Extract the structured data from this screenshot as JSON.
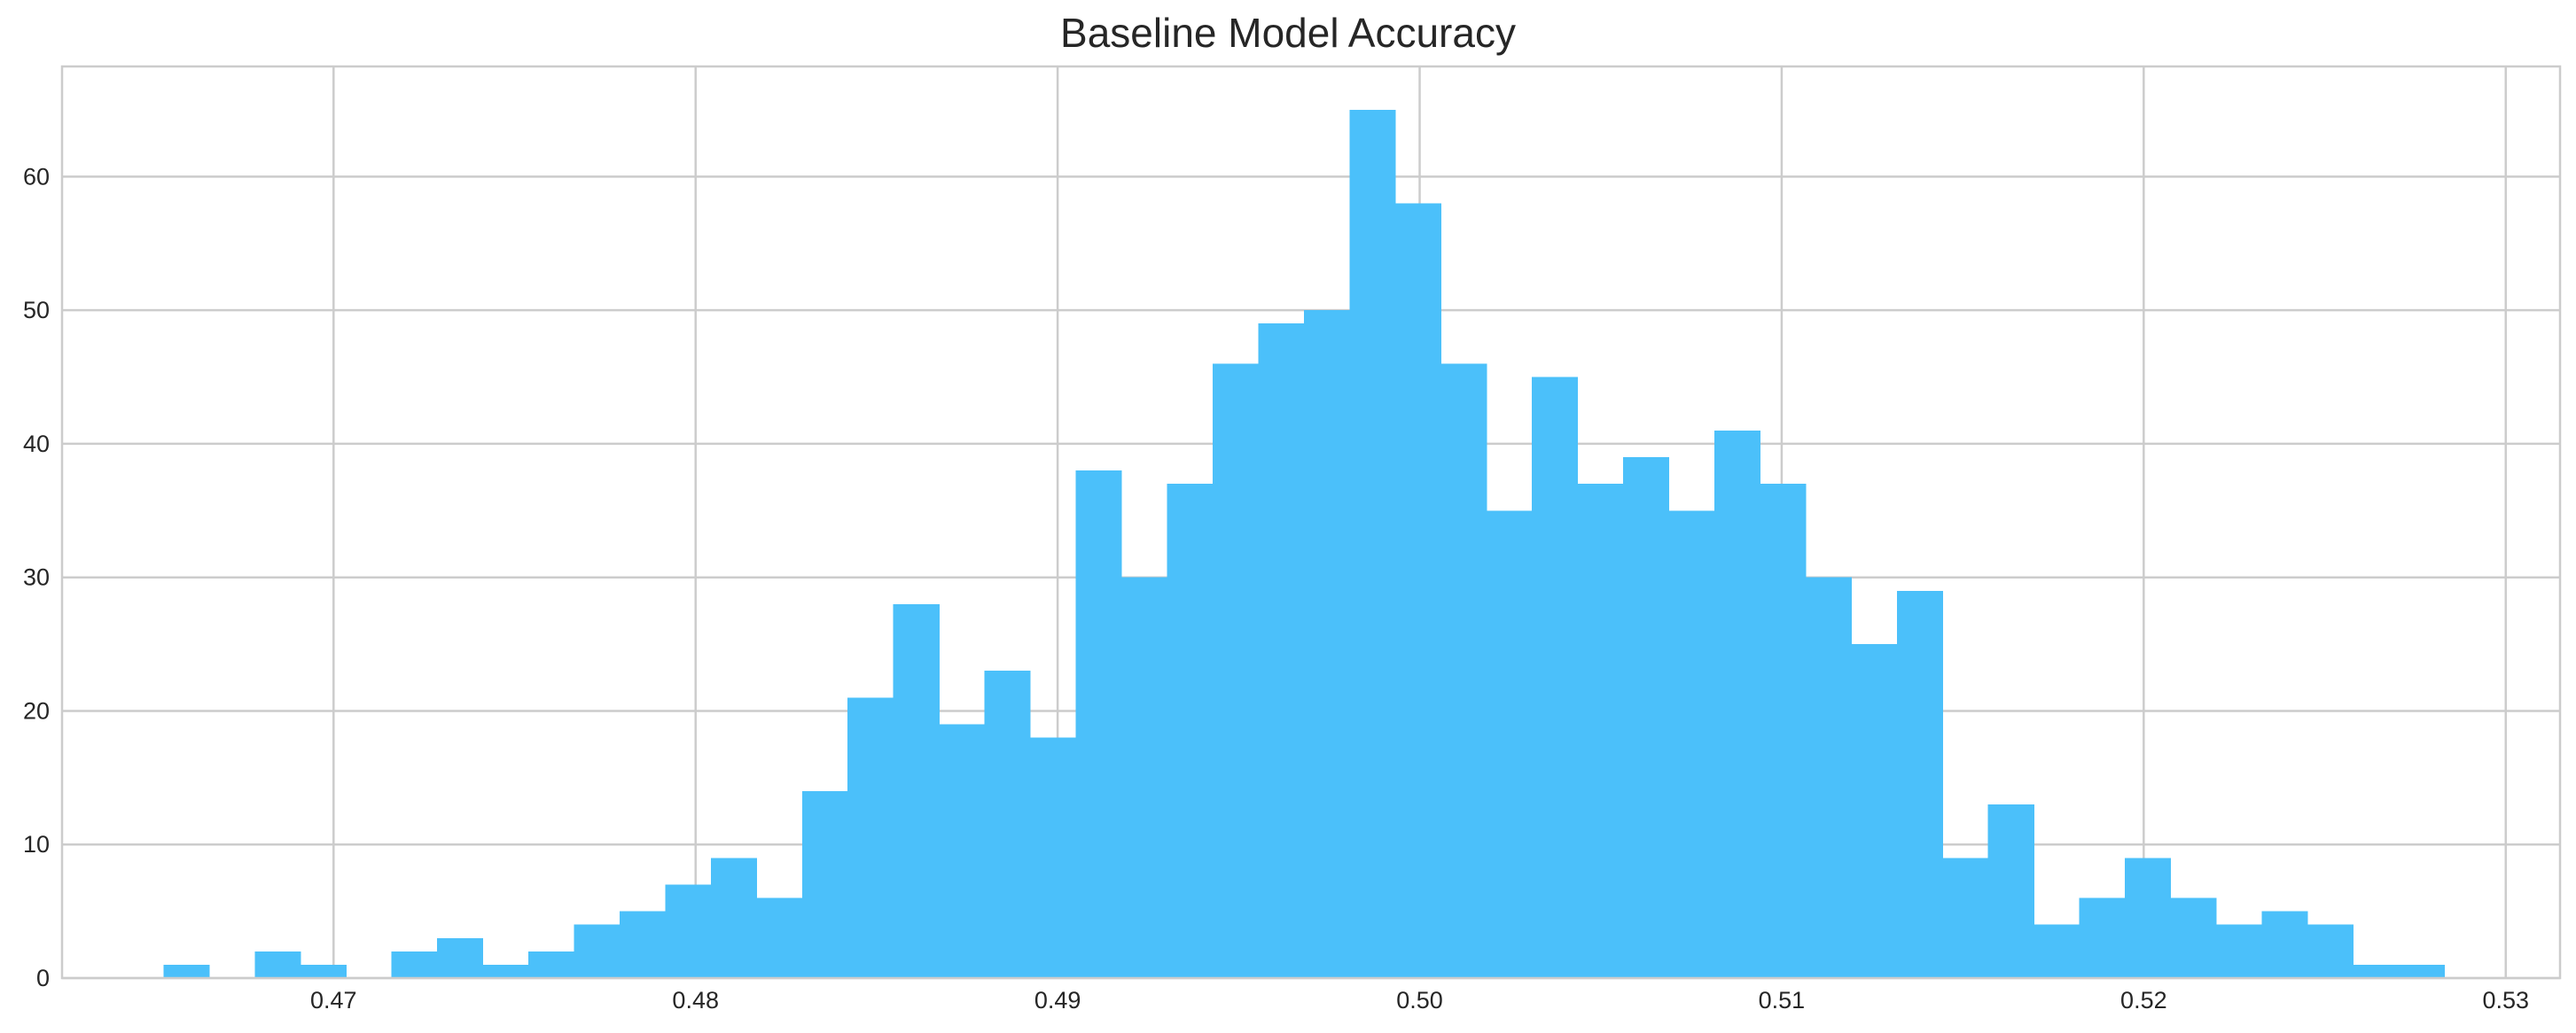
{
  "chart_data": {
    "type": "bar",
    "subtype": "histogram",
    "title": "Baseline Model Accuracy",
    "xlabel": "",
    "ylabel": "",
    "xlim": [
      0.4625,
      0.5315
    ],
    "ylim": [
      0,
      68.25
    ],
    "xticks": [
      0.47,
      0.48,
      0.49,
      0.5,
      0.51,
      0.52,
      0.53
    ],
    "xtick_labels": [
      "0.47",
      "0.48",
      "0.49",
      "0.50",
      "0.51",
      "0.52",
      "0.53"
    ],
    "yticks": [
      0,
      10,
      20,
      30,
      40,
      50,
      60
    ],
    "ytick_labels": [
      "0",
      "10",
      "20",
      "30",
      "40",
      "50",
      "60"
    ],
    "grid": true,
    "bar_color": "#4bc0fa",
    "bins": {
      "start": 0.4653,
      "end": 0.5283,
      "count": 50
    },
    "counts": [
      1,
      0,
      2,
      1,
      0,
      2,
      3,
      1,
      2,
      4,
      5,
      7,
      9,
      6,
      14,
      21,
      28,
      19,
      23,
      18,
      38,
      30,
      37,
      46,
      49,
      50,
      65,
      58,
      46,
      35,
      45,
      37,
      39,
      35,
      41,
      37,
      30,
      25,
      29,
      9,
      13,
      4,
      6,
      9,
      6,
      4,
      5,
      4,
      1,
      1
    ]
  }
}
